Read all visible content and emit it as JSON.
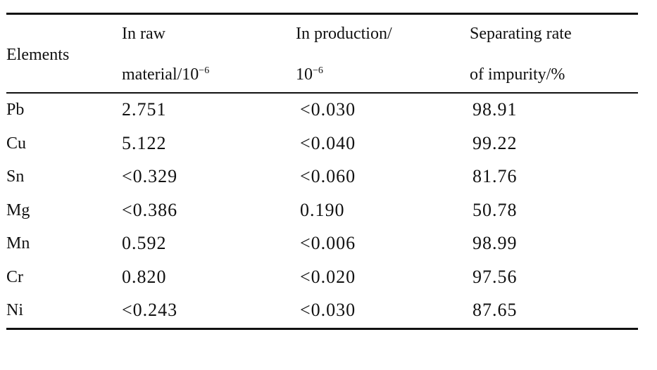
{
  "table": {
    "headers": {
      "elements": "Elements",
      "raw_line1": "In raw",
      "raw_line2": "material/10",
      "raw_sup": "−6",
      "prod_line1": "In production/",
      "prod_line2": "10",
      "prod_sup": "−6",
      "rate_line1": "Separating rate",
      "rate_line2": "of impurity/%"
    },
    "rows": [
      {
        "element": "Pb",
        "raw": "2.751",
        "production": "<0.030",
        "rate": "98.91"
      },
      {
        "element": "Cu",
        "raw": "5.122",
        "production": "<0.040",
        "rate": "99.22"
      },
      {
        "element": "Sn",
        "raw": "<0.329",
        "production": "<0.060",
        "rate": "81.76"
      },
      {
        "element": "Mg",
        "raw": "<0.386",
        "production": "0.190",
        "rate": "50.78"
      },
      {
        "element": "Mn",
        "raw": "0.592",
        "production": "<0.006",
        "rate": "98.99"
      },
      {
        "element": "Cr",
        "raw": "0.820",
        "production": "<0.020",
        "rate": "97.56"
      },
      {
        "element": "Ni",
        "raw": "<0.243",
        "production": "<0.030",
        "rate": "87.65"
      }
    ]
  }
}
